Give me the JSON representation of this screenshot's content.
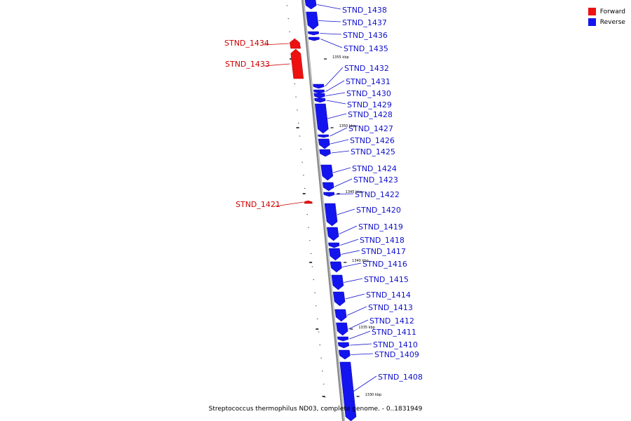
{
  "colors": {
    "forward": "#ee1111",
    "reverse": "#1414ee",
    "backbone": "#8c8c8c",
    "forward_label": "#cc0000",
    "reverse_label": "#1010cc"
  },
  "legend": [
    {
      "label": "Forward",
      "color": "#ee1111"
    },
    {
      "label": "Reverse",
      "color": "#1414ee"
    }
  ],
  "caption": "Streptococcus thermophilus ND03, complete genome. - 0..1831949",
  "ticks": [
    "1355 kbp",
    "1350 kbp",
    "1345 kbp",
    "1340 kbp",
    "1335 kbp",
    "1330 kbp"
  ],
  "genes": [
    {
      "name": "STND_1438",
      "strand": "reverse"
    },
    {
      "name": "STND_1437",
      "strand": "reverse"
    },
    {
      "name": "STND_1436",
      "strand": "reverse"
    },
    {
      "name": "STND_1435",
      "strand": "reverse"
    },
    {
      "name": "STND_1434",
      "strand": "forward"
    },
    {
      "name": "STND_1433",
      "strand": "forward"
    },
    {
      "name": "STND_1432",
      "strand": "reverse"
    },
    {
      "name": "STND_1431",
      "strand": "reverse"
    },
    {
      "name": "STND_1430",
      "strand": "reverse"
    },
    {
      "name": "STND_1429",
      "strand": "reverse"
    },
    {
      "name": "STND_1428",
      "strand": "reverse"
    },
    {
      "name": "STND_1427",
      "strand": "reverse"
    },
    {
      "name": "STND_1426",
      "strand": "reverse"
    },
    {
      "name": "STND_1425",
      "strand": "reverse"
    },
    {
      "name": "STND_1424",
      "strand": "reverse"
    },
    {
      "name": "STND_1423",
      "strand": "reverse"
    },
    {
      "name": "STND_1422",
      "strand": "reverse"
    },
    {
      "name": "STND_1421",
      "strand": "forward"
    },
    {
      "name": "STND_1420",
      "strand": "reverse"
    },
    {
      "name": "STND_1419",
      "strand": "reverse"
    },
    {
      "name": "STND_1418",
      "strand": "reverse"
    },
    {
      "name": "STND_1417",
      "strand": "reverse"
    },
    {
      "name": "STND_1416",
      "strand": "reverse"
    },
    {
      "name": "STND_1415",
      "strand": "reverse"
    },
    {
      "name": "STND_1414",
      "strand": "reverse"
    },
    {
      "name": "STND_1413",
      "strand": "reverse"
    },
    {
      "name": "STND_1412",
      "strand": "reverse"
    },
    {
      "name": "STND_1411",
      "strand": "reverse"
    },
    {
      "name": "STND_1410",
      "strand": "reverse"
    },
    {
      "name": "STND_1409",
      "strand": "reverse"
    },
    {
      "name": "STND_1408",
      "strand": "reverse"
    }
  ]
}
